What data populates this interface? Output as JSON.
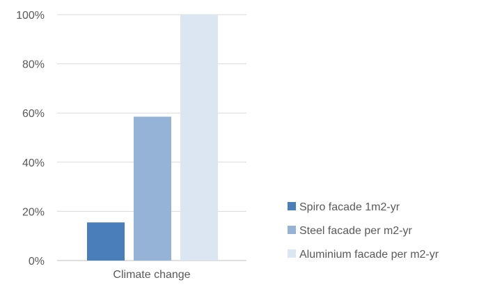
{
  "chart_data": {
    "type": "bar",
    "categories": [
      "Climate change"
    ],
    "series": [
      {
        "name": "Spiro facade 1m2-yr",
        "values": [
          15.5
        ],
        "color": "#4a7ebb"
      },
      {
        "name": "Steel facade per m2-yr",
        "values": [
          58.5
        ],
        "color": "#95b3d7"
      },
      {
        "name": "Aluminium facade per m2-yr",
        "values": [
          100
        ],
        "color": "#dce6f2"
      }
    ],
    "y_ticks": [
      "0%",
      "20%",
      "40%",
      "60%",
      "80%",
      "100%"
    ],
    "ylim": [
      0,
      100
    ],
    "y_unit": "%",
    "grid": true,
    "legend_position": "right",
    "title": "",
    "xlabel": "",
    "ylabel": ""
  }
}
